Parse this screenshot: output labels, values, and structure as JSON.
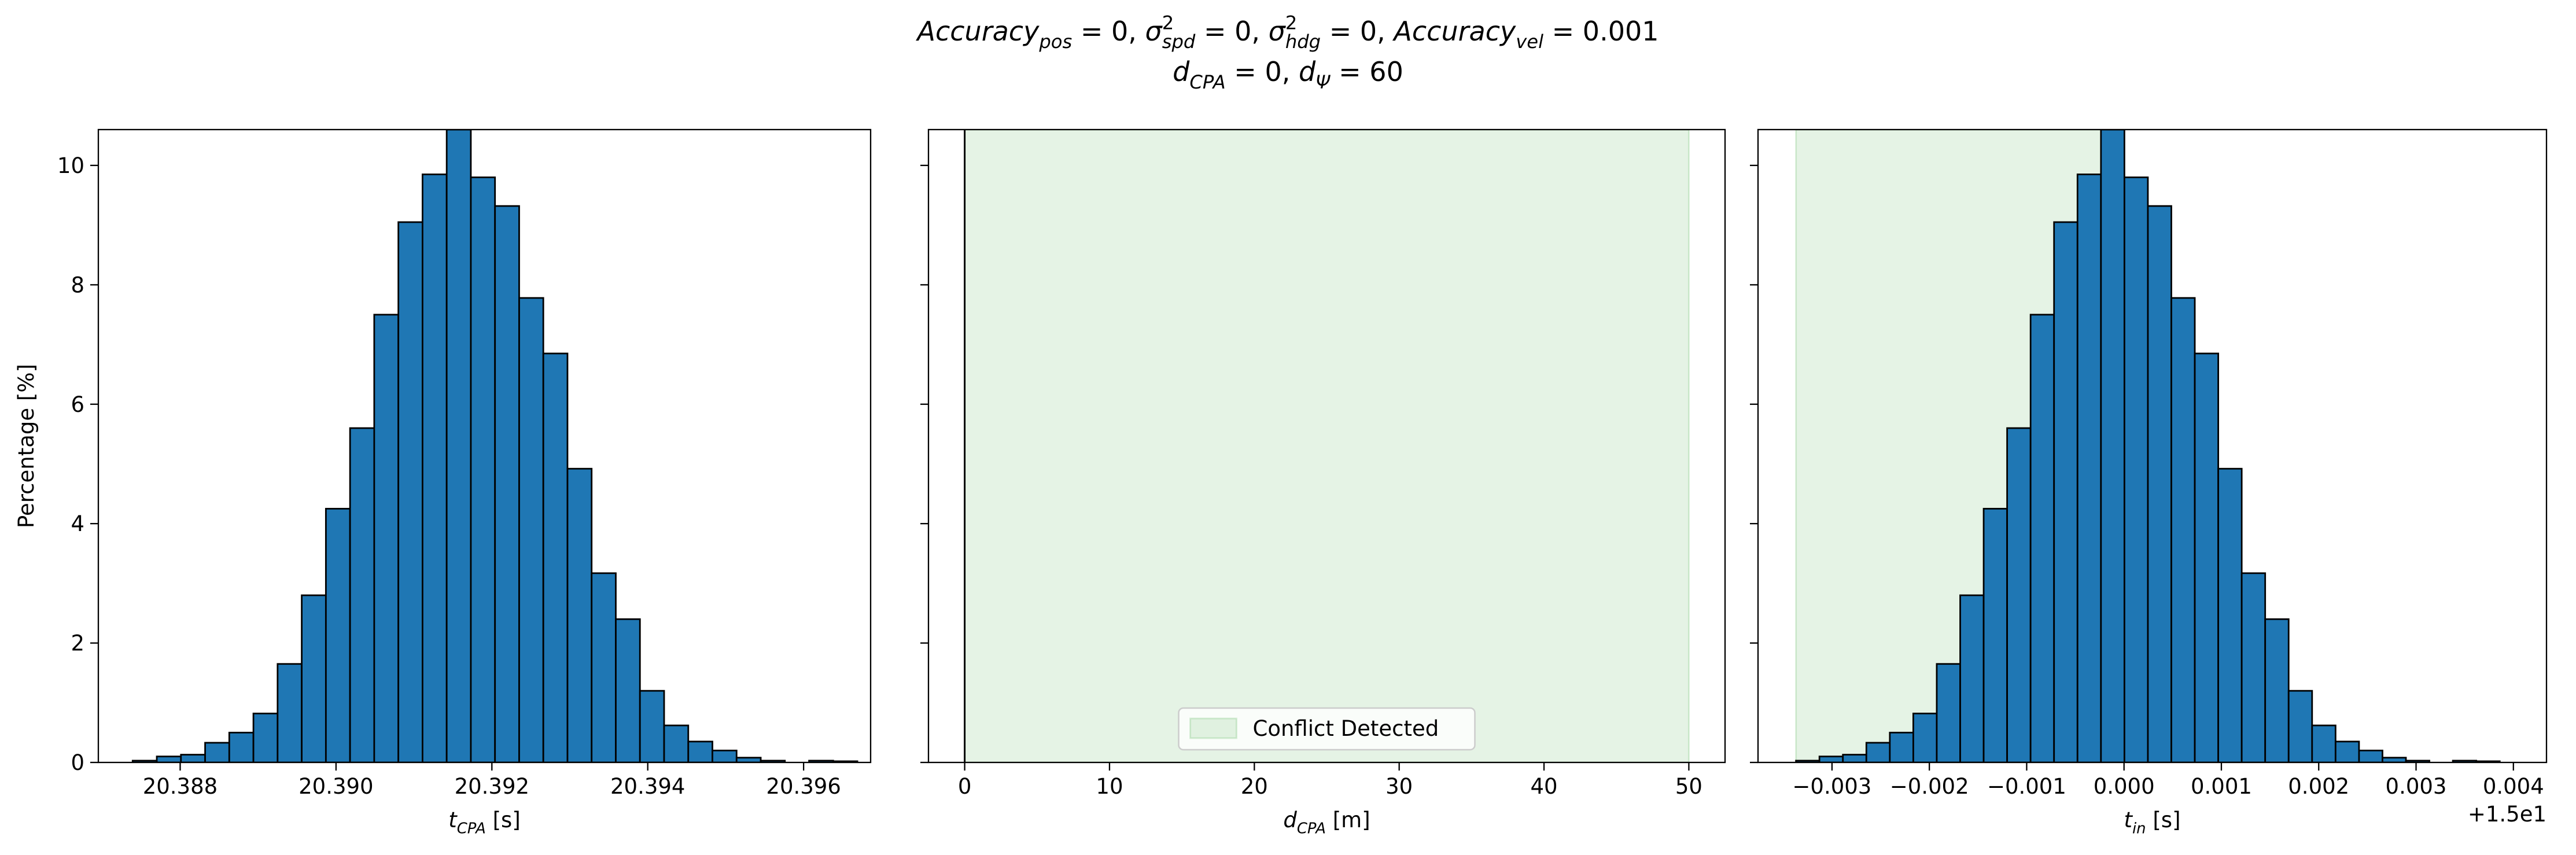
{
  "title": [
    [
      [
        "i",
        "Accuracy"
      ],
      [
        "b",
        "pos"
      ],
      [
        "r",
        " = 0, "
      ],
      [
        "i",
        "σ"
      ],
      [
        "p",
        "2"
      ],
      [
        "b",
        "spd"
      ],
      [
        "r",
        " = 0, "
      ],
      [
        "i",
        "σ"
      ],
      [
        "p",
        "2"
      ],
      [
        "b",
        "hdg"
      ],
      [
        "r",
        " = 0, "
      ],
      [
        "i",
        "Accuracy"
      ],
      [
        "b",
        "vel"
      ],
      [
        "r",
        " = 0.001"
      ]
    ],
    [
      [
        "i",
        "d"
      ],
      [
        "b",
        "CPA"
      ],
      [
        "r",
        " = 0, "
      ],
      [
        "i",
        "d"
      ],
      [
        "b",
        "Ψ"
      ],
      [
        "r",
        " = 60"
      ]
    ]
  ],
  "chart_data": [
    {
      "type": "histogram",
      "xlabel": [
        [
          "i",
          "t"
        ],
        [
          "b",
          "CPA"
        ],
        [
          "r",
          " [s]"
        ]
      ],
      "ylabel": "Percentage [%]",
      "color": "#1f77b4",
      "edgecolor": "#000000",
      "bins": [
        20.38739,
        20.3877,
        20.38801,
        20.38832,
        20.38863,
        20.38894,
        20.38925,
        20.38956,
        20.38987,
        20.39018,
        20.39049,
        20.3908,
        20.39111,
        20.39142,
        20.39173,
        20.39204,
        20.39235,
        20.39266,
        20.39297,
        20.39328,
        20.39359,
        20.3939,
        20.39421,
        20.39452,
        20.39483,
        20.39514,
        20.39545,
        20.39576,
        20.39607,
        20.39638,
        20.39669
      ],
      "values": [
        0.03,
        0.1,
        0.13,
        0.33,
        0.5,
        0.82,
        1.65,
        2.8,
        4.25,
        5.6,
        7.5,
        9.05,
        9.85,
        10.6,
        9.8,
        9.32,
        7.78,
        6.85,
        4.92,
        3.17,
        2.4,
        1.2,
        0.62,
        0.35,
        0.2,
        0.08,
        0.03,
        0.0,
        0.03,
        0.02
      ],
      "xlim": [
        20.38695,
        20.39686
      ],
      "xticks": [
        20.388,
        {
          "value": 20.39,
          "label": "20.390"
        },
        20.392,
        20.394,
        20.396
      ],
      "ylim": [
        0,
        10.6
      ],
      "yticks": [
        0,
        2,
        4,
        6,
        8,
        10
      ]
    },
    {
      "type": "span",
      "xlabel": [
        [
          "i",
          "d"
        ],
        [
          "b",
          "CPA"
        ],
        [
          "r",
          " [m]"
        ]
      ],
      "span_color": "#2ca02c",
      "span_alpha": 0.12,
      "spans": [
        {
          "start": 0,
          "end": 50,
          "label": "Conflict Detected"
        }
      ],
      "vlines": [
        0
      ],
      "legend": "lower center",
      "xlim": [
        -2.5,
        52.5
      ],
      "xticks": [
        0,
        10,
        20,
        30,
        40,
        50
      ],
      "ylim": [
        0,
        10.6
      ],
      "yticks": [
        0,
        2,
        4,
        6,
        8,
        10
      ],
      "ytick_labels": false
    },
    {
      "type": "histogram",
      "xlabel": [
        [
          "i",
          "t"
        ],
        [
          "b",
          "in"
        ],
        [
          "r",
          " [s]"
        ]
      ],
      "color": "#1f77b4",
      "edgecolor": "#000000",
      "span_color": "#2ca02c",
      "span_alpha": 0.12,
      "spans": [
        {
          "start": -0.00337,
          "end": -0.00015
        }
      ],
      "bins": [
        -0.00337,
        -0.003129,
        -0.002888,
        -0.002647,
        -0.002406,
        -0.002165,
        -0.001924,
        -0.001683,
        -0.001442,
        -0.001201,
        -0.00096,
        -0.000719,
        -0.000478,
        -0.000237,
        4e-06,
        0.000245,
        0.000486,
        0.000727,
        0.000968,
        0.001209,
        0.00145,
        0.001691,
        0.001932,
        0.002173,
        0.002414,
        0.002655,
        0.002896,
        0.003137,
        0.003378,
        0.003619,
        0.00386
      ],
      "values": [
        0.03,
        0.1,
        0.13,
        0.33,
        0.5,
        0.82,
        1.65,
        2.8,
        4.25,
        5.6,
        7.5,
        9.05,
        9.85,
        10.6,
        9.8,
        9.32,
        7.78,
        6.85,
        4.92,
        3.17,
        2.4,
        1.2,
        0.62,
        0.35,
        0.2,
        0.08,
        0.03,
        0.0,
        0.03,
        0.02
      ],
      "xlim": [
        -0.00376,
        0.00434
      ],
      "xticks": [
        {
          "value": -0.003,
          "label": "−0.003"
        },
        {
          "value": -0.002,
          "label": "−0.002"
        },
        {
          "value": -0.001,
          "label": "−0.001"
        },
        {
          "value": 0,
          "label": "0.000"
        },
        {
          "value": 0.001,
          "label": "0.001"
        },
        {
          "value": 0.002,
          "label": "0.002"
        },
        {
          "value": 0.003,
          "label": "0.003"
        },
        {
          "value": 0.004,
          "label": "0.004"
        }
      ],
      "offset_text": "+1.5e1",
      "ylim": [
        0,
        10.6
      ],
      "yticks": [
        0,
        2,
        4,
        6,
        8,
        10
      ],
      "ytick_labels": false
    }
  ]
}
